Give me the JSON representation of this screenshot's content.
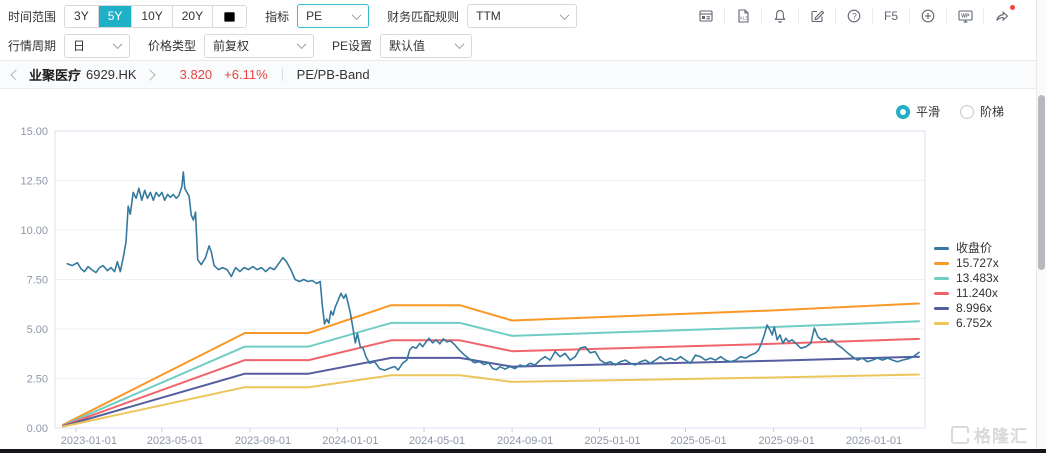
{
  "colors": {
    "accent": "#1fb0c8",
    "red": "#e64545"
  },
  "toolbar": {
    "time_range_label": "时间范围",
    "time_ranges": [
      "3Y",
      "5Y",
      "10Y",
      "20Y"
    ],
    "selected_time_range": "5Y",
    "indicator_label": "指标",
    "indicator_value": "PE",
    "finance_rule_label": "财务匹配规则",
    "finance_rule_value": "TTM",
    "period_label": "行情周期",
    "period_value": "日",
    "price_type_label": "价格类型",
    "price_type_value": "前复权",
    "pe_setting_label": "PE设置",
    "pe_setting_value": "默认值",
    "f5_label": "F5",
    "wp_label": "WP",
    "xls_label": "XLS",
    "help_glyph": "?",
    "icons": [
      "panel-layout-icon",
      "export-xls-icon",
      "bell-icon",
      "edit-icon",
      "help-icon",
      "refresh-f5",
      "plus-circle-icon",
      "wp-monitor-icon",
      "share-icon"
    ]
  },
  "stock_bar": {
    "name": "业聚医疗",
    "code": "6929.HK",
    "price": "3.820",
    "change": "+6.11%",
    "view_label": "PE/PB-Band"
  },
  "chart_controls": {
    "smooth_label": "平滑",
    "step_label": "阶梯",
    "selected": "平滑"
  },
  "watermark": {
    "text": "格隆汇"
  },
  "chart_data": {
    "type": "line",
    "mode": "smooth",
    "legend_position": "right",
    "y_axis": {
      "min": 0,
      "max": 15,
      "interval": 2.5,
      "tick_labels": [
        "0.00",
        "2.50",
        "5.00",
        "7.50",
        "10.00",
        "12.50",
        "15.00"
      ]
    },
    "x_axis": {
      "total_days": 1195,
      "ticks": [
        {
          "label": "2023-01-01",
          "day": 18
        },
        {
          "label": "2023-05-01",
          "day": 138
        },
        {
          "label": "2023-09-01",
          "day": 261
        },
        {
          "label": "2024-01-01",
          "day": 383
        },
        {
          "label": "2024-05-01",
          "day": 504
        },
        {
          "label": "2024-09-01",
          "day": 627
        },
        {
          "label": "2025-01-01",
          "day": 749
        },
        {
          "label": "2025-05-01",
          "day": 869
        },
        {
          "label": "2025-09-01",
          "day": 992
        },
        {
          "label": "2026-01-01",
          "day": 1114
        }
      ]
    },
    "series": [
      {
        "name": "收盘价",
        "color": "#35799f",
        "width": 1.6,
        "points": [
          [
            6,
            8.3
          ],
          [
            13,
            8.2
          ],
          [
            20,
            8.35
          ],
          [
            25,
            8.05
          ],
          [
            30,
            7.9
          ],
          [
            35,
            8.15
          ],
          [
            40,
            8.0
          ],
          [
            46,
            7.85
          ],
          [
            51,
            8.1
          ],
          [
            56,
            8.2
          ],
          [
            62,
            7.95
          ],
          [
            67,
            8.1
          ],
          [
            72,
            7.9
          ],
          [
            76,
            8.4
          ],
          [
            80,
            7.9
          ],
          [
            84,
            8.6
          ],
          [
            88,
            9.4
          ],
          [
            91,
            11.2
          ],
          [
            94,
            10.8
          ],
          [
            98,
            11.9
          ],
          [
            102,
            11.6
          ],
          [
            106,
            12.1
          ],
          [
            110,
            11.5
          ],
          [
            114,
            12.0
          ],
          [
            118,
            11.6
          ],
          [
            122,
            11.9
          ],
          [
            126,
            11.5
          ],
          [
            130,
            11.9
          ],
          [
            134,
            11.7
          ],
          [
            138,
            11.9
          ],
          [
            142,
            11.5
          ],
          [
            146,
            11.8
          ],
          [
            150,
            11.65
          ],
          [
            154,
            11.8
          ],
          [
            158,
            11.6
          ],
          [
            162,
            11.75
          ],
          [
            166,
            12.2
          ],
          [
            168,
            12.93
          ],
          [
            170,
            12.1
          ],
          [
            173,
            11.9
          ],
          [
            176,
            11.7
          ],
          [
            179,
            10.76
          ],
          [
            182,
            10.5
          ],
          [
            185,
            10.9
          ],
          [
            188,
            8.5
          ],
          [
            193,
            8.25
          ],
          [
            199,
            8.6
          ],
          [
            204,
            9.2
          ],
          [
            207,
            8.9
          ],
          [
            211,
            8.2
          ],
          [
            217,
            8.0
          ],
          [
            223,
            8.1
          ],
          [
            229,
            8.0
          ],
          [
            235,
            7.65
          ],
          [
            241,
            8.1
          ],
          [
            247,
            7.9
          ],
          [
            253,
            8.1
          ],
          [
            259,
            8.0
          ],
          [
            265,
            8.15
          ],
          [
            271,
            8.0
          ],
          [
            277,
            8.1
          ],
          [
            283,
            7.9
          ],
          [
            289,
            8.1
          ],
          [
            295,
            8.0
          ],
          [
            301,
            8.3
          ],
          [
            307,
            8.6
          ],
          [
            312,
            8.4
          ],
          [
            318,
            8.0
          ],
          [
            324,
            7.5
          ],
          [
            330,
            7.4
          ],
          [
            336,
            7.5
          ],
          [
            342,
            7.4
          ],
          [
            348,
            7.45
          ],
          [
            354,
            7.3
          ],
          [
            359,
            7.4
          ],
          [
            362,
            6.2
          ],
          [
            365,
            5.25
          ],
          [
            368,
            5.5
          ],
          [
            371,
            5.3
          ],
          [
            374,
            5.9
          ],
          [
            377,
            5.7
          ],
          [
            380,
            6.1
          ],
          [
            384,
            6.45
          ],
          [
            388,
            6.8
          ],
          [
            392,
            6.55
          ],
          [
            395,
            6.75
          ],
          [
            398,
            6.3
          ],
          [
            401,
            5.85
          ],
          [
            405,
            5.0
          ],
          [
            408,
            4.3
          ],
          [
            411,
            4.78
          ],
          [
            415,
            4.1
          ],
          [
            419,
            4.03
          ],
          [
            423,
            3.6
          ],
          [
            428,
            3.27
          ],
          [
            435,
            3.35
          ],
          [
            442,
            3.0
          ],
          [
            449,
            2.92
          ],
          [
            456,
            3.02
          ],
          [
            463,
            3.1
          ],
          [
            468,
            2.93
          ],
          [
            474,
            3.27
          ],
          [
            480,
            3.43
          ],
          [
            484,
            3.94
          ],
          [
            488,
            4.1
          ],
          [
            493,
            4.03
          ],
          [
            498,
            4.28
          ],
          [
            502,
            4.1
          ],
          [
            507,
            4.36
          ],
          [
            511,
            4.53
          ],
          [
            516,
            4.3
          ],
          [
            521,
            4.45
          ],
          [
            526,
            4.25
          ],
          [
            531,
            4.5
          ],
          [
            536,
            4.35
          ],
          [
            541,
            4.4
          ],
          [
            547,
            4.2
          ],
          [
            553,
            3.95
          ],
          [
            560,
            3.7
          ],
          [
            567,
            3.5
          ],
          [
            574,
            3.3
          ],
          [
            581,
            3.35
          ],
          [
            588,
            3.2
          ],
          [
            594,
            3.3
          ],
          [
            600,
            3.0
          ],
          [
            605,
            2.95
          ],
          [
            610,
            3.1
          ],
          [
            617,
            2.97
          ],
          [
            624,
            3.1
          ],
          [
            631,
            3.0
          ],
          [
            638,
            3.18
          ],
          [
            645,
            3.1
          ],
          [
            652,
            3.27
          ],
          [
            659,
            3.18
          ],
          [
            666,
            3.43
          ],
          [
            673,
            3.6
          ],
          [
            680,
            3.43
          ],
          [
            687,
            3.86
          ],
          [
            694,
            3.6
          ],
          [
            701,
            3.77
          ],
          [
            708,
            3.43
          ],
          [
            715,
            3.6
          ],
          [
            722,
            4.03
          ],
          [
            729,
            4.1
          ],
          [
            736,
            3.8
          ],
          [
            743,
            3.86
          ],
          [
            750,
            3.43
          ],
          [
            757,
            3.27
          ],
          [
            764,
            3.35
          ],
          [
            771,
            3.18
          ],
          [
            778,
            3.35
          ],
          [
            785,
            3.43
          ],
          [
            792,
            3.27
          ],
          [
            799,
            3.18
          ],
          [
            806,
            3.35
          ],
          [
            813,
            3.43
          ],
          [
            820,
            3.27
          ],
          [
            827,
            3.43
          ],
          [
            834,
            3.6
          ],
          [
            841,
            3.43
          ],
          [
            848,
            3.53
          ],
          [
            855,
            3.43
          ],
          [
            862,
            3.6
          ],
          [
            869,
            3.43
          ],
          [
            876,
            3.27
          ],
          [
            883,
            3.68
          ],
          [
            890,
            3.6
          ],
          [
            897,
            3.43
          ],
          [
            904,
            3.53
          ],
          [
            911,
            3.43
          ],
          [
            918,
            3.6
          ],
          [
            925,
            3.43
          ],
          [
            932,
            3.35
          ],
          [
            939,
            3.43
          ],
          [
            946,
            3.6
          ],
          [
            953,
            3.53
          ],
          [
            960,
            3.68
          ],
          [
            967,
            3.8
          ],
          [
            971,
            3.94
          ],
          [
            975,
            4.28
          ],
          [
            979,
            4.7
          ],
          [
            983,
            5.2
          ],
          [
            987,
            4.95
          ],
          [
            990,
            4.7
          ],
          [
            993,
            5.1
          ],
          [
            997,
            4.45
          ],
          [
            1001,
            4.7
          ],
          [
            1005,
            4.28
          ],
          [
            1009,
            4.53
          ],
          [
            1013,
            4.36
          ],
          [
            1018,
            4.45
          ],
          [
            1023,
            4.28
          ],
          [
            1030,
            4.03
          ],
          [
            1037,
            4.1
          ],
          [
            1044,
            4.28
          ],
          [
            1049,
            5.05
          ],
          [
            1054,
            4.6
          ],
          [
            1059,
            4.45
          ],
          [
            1064,
            4.53
          ],
          [
            1069,
            4.36
          ],
          [
            1074,
            4.45
          ],
          [
            1081,
            4.2
          ],
          [
            1088,
            4.03
          ],
          [
            1095,
            3.8
          ],
          [
            1102,
            3.6
          ],
          [
            1109,
            3.43
          ],
          [
            1116,
            3.53
          ],
          [
            1123,
            3.35
          ],
          [
            1130,
            3.43
          ],
          [
            1137,
            3.53
          ],
          [
            1144,
            3.43
          ],
          [
            1151,
            3.53
          ],
          [
            1158,
            3.43
          ],
          [
            1165,
            3.35
          ],
          [
            1172,
            3.43
          ],
          [
            1180,
            3.5
          ],
          [
            1187,
            3.6
          ],
          [
            1195,
            3.82
          ]
        ]
      },
      {
        "name": "15.727x",
        "color": "#f99827",
        "width": 2,
        "points": [
          [
            0,
            0.16
          ],
          [
            254,
            4.8
          ],
          [
            343,
            4.8
          ],
          [
            458,
            6.2
          ],
          [
            554,
            6.2
          ],
          [
            627,
            5.43
          ],
          [
            992,
            5.94
          ],
          [
            1195,
            6.29
          ]
        ]
      },
      {
        "name": "13.483x",
        "color": "#70cdc3",
        "width": 2,
        "points": [
          [
            0,
            0.13
          ],
          [
            254,
            4.11
          ],
          [
            343,
            4.11
          ],
          [
            458,
            5.31
          ],
          [
            554,
            5.31
          ],
          [
            627,
            4.65
          ],
          [
            992,
            5.1
          ],
          [
            1195,
            5.39
          ]
        ]
      },
      {
        "name": "11.240x",
        "color": "#f0656c",
        "width": 2,
        "points": [
          [
            0,
            0.11
          ],
          [
            254,
            3.43
          ],
          [
            343,
            3.43
          ],
          [
            458,
            4.43
          ],
          [
            554,
            4.43
          ],
          [
            627,
            3.88
          ],
          [
            992,
            4.25
          ],
          [
            1195,
            4.5
          ]
        ]
      },
      {
        "name": "8.996x",
        "color": "#545d9e",
        "width": 2,
        "points": [
          [
            0,
            0.09
          ],
          [
            254,
            2.74
          ],
          [
            343,
            2.74
          ],
          [
            458,
            3.54
          ],
          [
            554,
            3.54
          ],
          [
            627,
            3.1
          ],
          [
            992,
            3.4
          ],
          [
            1195,
            3.6
          ]
        ]
      },
      {
        "name": "6.752x",
        "color": "#ecc65b",
        "width": 2,
        "points": [
          [
            0,
            0.07
          ],
          [
            254,
            2.06
          ],
          [
            343,
            2.06
          ],
          [
            458,
            2.66
          ],
          [
            554,
            2.66
          ],
          [
            627,
            2.33
          ],
          [
            992,
            2.55
          ],
          [
            1195,
            2.7
          ]
        ]
      }
    ]
  }
}
